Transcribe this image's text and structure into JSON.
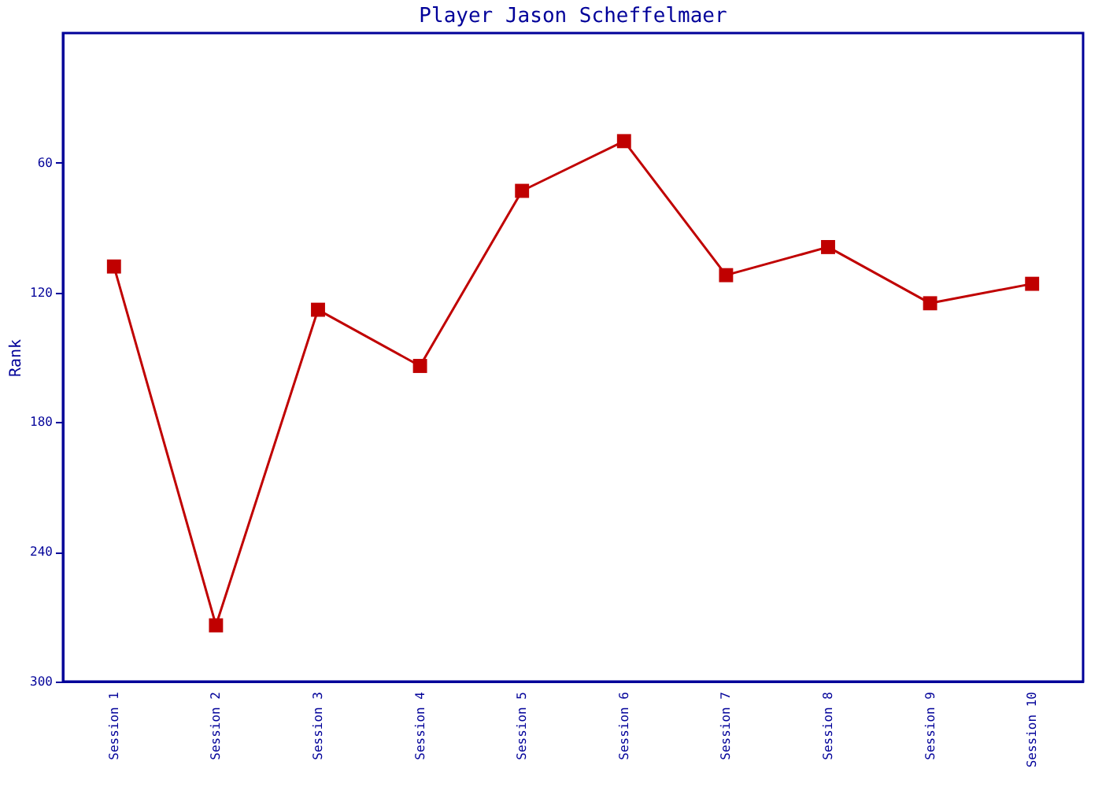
{
  "chart_data": {
    "type": "line",
    "title": "Player Jason Scheffelmaer",
    "ylabel": "Rank",
    "categories": [
      "Session 1",
      "Session 2",
      "Session 3",
      "Session 4",
      "Session 5",
      "Session 6",
      "Session 7",
      "Session 8",
      "Session 9",
      "Session 10"
    ],
    "series": [
      {
        "color": "#c00000",
        "values": [
          108,
          274,
          128,
          154,
          73,
          50,
          112,
          99,
          125,
          116
        ]
      }
    ],
    "ylim": [
      300,
      0
    ],
    "yticks": [
      60,
      120,
      180,
      240,
      300
    ],
    "marker": "square",
    "line_style": "solid"
  }
}
